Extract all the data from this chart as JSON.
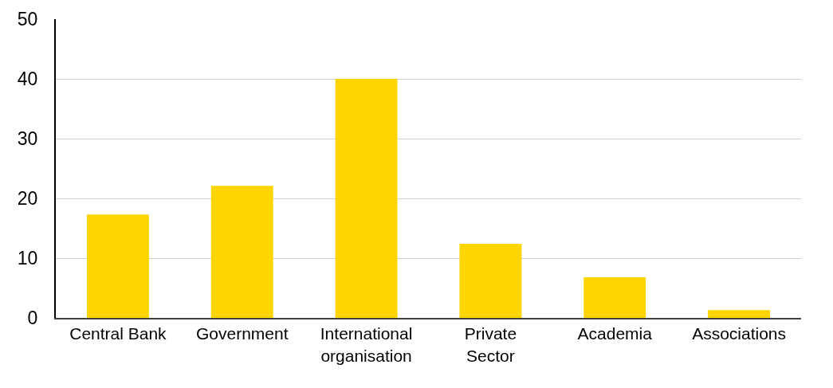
{
  "chart_data": {
    "type": "bar",
    "categories": [
      "Central Bank",
      "Government",
      "International organisation",
      "Private Sector",
      "Academia",
      "Associations"
    ],
    "values": [
      17.3,
      22.1,
      40,
      12.4,
      6.8,
      1.3
    ],
    "color": "#ffd500",
    "ylim": [
      0,
      50
    ],
    "yticks": [
      0,
      10,
      20,
      30,
      40,
      50
    ],
    "grid": "y"
  }
}
